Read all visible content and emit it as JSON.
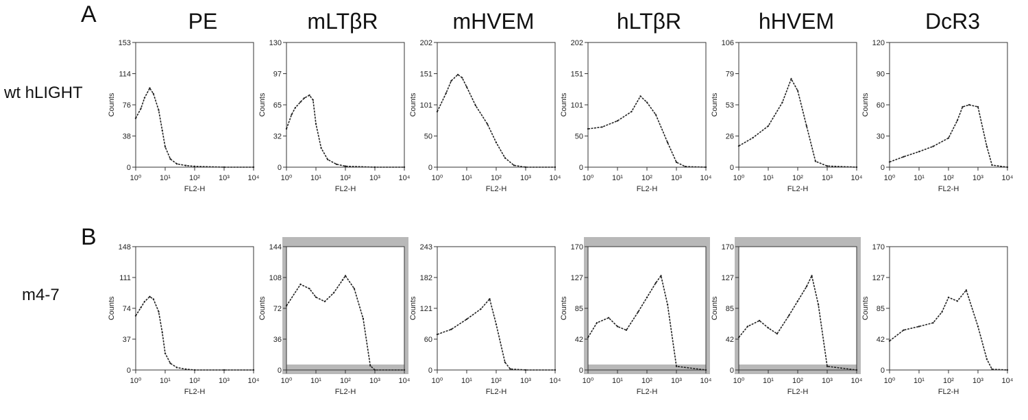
{
  "panel_labels": [
    "A",
    "B"
  ],
  "columns": [
    "PE",
    "mLTβR",
    "mHVEM",
    "hLTβR",
    "hHVEM",
    "DcR3"
  ],
  "rows": [
    "wt hLIGHT",
    "m4-7"
  ],
  "style": {
    "trace_color": "#222222",
    "highlight_fill": "#b8b8b8"
  },
  "chart_data": [
    {
      "type": "area",
      "row": "wt hLIGHT",
      "column": "PE",
      "xlabel": "FL2-H",
      "ylabel": "Counts",
      "xscale": "log",
      "xlim": [
        1,
        10000
      ],
      "ylim": [
        0,
        153
      ],
      "x_ticks": [
        "10⁰",
        "10¹",
        "10²",
        "10³",
        "10⁴"
      ],
      "y_ticks": [
        "0",
        "38",
        "76",
        "114",
        "153"
      ],
      "x": [
        1,
        1.5,
        2,
        3,
        4,
        6,
        8,
        10,
        15,
        25,
        50,
        100,
        1000,
        10000
      ],
      "y": [
        60,
        72,
        85,
        97,
        90,
        70,
        45,
        25,
        10,
        4,
        2,
        1,
        0,
        0
      ],
      "highlight": false
    },
    {
      "type": "area",
      "row": "wt hLIGHT",
      "column": "mLTβR",
      "xlabel": "FL2-H",
      "ylabel": "Counts",
      "xscale": "log",
      "xlim": [
        1,
        10000
      ],
      "ylim": [
        0,
        130
      ],
      "x_ticks": [
        "10⁰",
        "10¹",
        "10²",
        "10³",
        "10⁴"
      ],
      "y_ticks": [
        "0",
        "32",
        "65",
        "97",
        "130"
      ],
      "x": [
        1,
        1.5,
        2,
        3,
        4,
        6,
        8,
        10,
        15,
        25,
        50,
        100,
        1000,
        10000
      ],
      "y": [
        40,
        55,
        62,
        68,
        72,
        75,
        70,
        45,
        20,
        8,
        3,
        1,
        0,
        0
      ],
      "highlight": false
    },
    {
      "type": "area",
      "row": "wt hLIGHT",
      "column": "mHVEM",
      "xlabel": "FL2-H",
      "ylabel": "Counts",
      "xscale": "log",
      "xlim": [
        1,
        10000
      ],
      "ylim": [
        0,
        202
      ],
      "x_ticks": [
        "10⁰",
        "10¹",
        "10²",
        "10³",
        "10⁴"
      ],
      "y_ticks": [
        "0",
        "50",
        "101",
        "151",
        "202"
      ],
      "x": [
        1,
        2,
        3,
        5,
        7,
        10,
        20,
        50,
        100,
        200,
        400,
        1000,
        10000
      ],
      "y": [
        90,
        120,
        140,
        150,
        145,
        130,
        100,
        70,
        40,
        15,
        3,
        0,
        0
      ],
      "highlight": false
    },
    {
      "type": "area",
      "row": "wt hLIGHT",
      "column": "hLTβR",
      "xlabel": "FL2-H",
      "ylabel": "Counts",
      "xscale": "log",
      "xlim": [
        1,
        10000
      ],
      "ylim": [
        0,
        202
      ],
      "x_ticks": [
        "10⁰",
        "10¹",
        "10²",
        "10³",
        "10⁴"
      ],
      "y_ticks": [
        "0",
        "50",
        "101",
        "151",
        "202"
      ],
      "x": [
        1,
        3,
        10,
        30,
        60,
        100,
        200,
        500,
        1000,
        2000,
        10000
      ],
      "y": [
        62,
        65,
        75,
        90,
        115,
        105,
        85,
        40,
        8,
        1,
        0
      ],
      "highlight": false
    },
    {
      "type": "area",
      "row": "wt hLIGHT",
      "column": "hHVEM",
      "xlabel": "FL2-H",
      "ylabel": "Counts",
      "xscale": "log",
      "xlim": [
        1,
        10000
      ],
      "ylim": [
        0,
        106
      ],
      "x_ticks": [
        "10⁰",
        "10¹",
        "10²",
        "10³",
        "10⁴"
      ],
      "y_ticks": [
        "0",
        "26",
        "53",
        "79",
        "106"
      ],
      "x": [
        1,
        3,
        10,
        30,
        60,
        100,
        200,
        400,
        1000,
        10000
      ],
      "y": [
        18,
        25,
        35,
        55,
        75,
        65,
        35,
        5,
        1,
        0
      ],
      "highlight": false
    },
    {
      "type": "area",
      "row": "wt hLIGHT",
      "column": "DcR3",
      "xlabel": "FL2-H",
      "ylabel": "Counts",
      "xscale": "log",
      "xlim": [
        1,
        10000
      ],
      "ylim": [
        0,
        120
      ],
      "x_ticks": [
        "10⁰",
        "10¹",
        "10²",
        "10³",
        "10⁴"
      ],
      "y_ticks": [
        "0",
        "30",
        "60",
        "90",
        "120"
      ],
      "x": [
        1,
        3,
        10,
        30,
        100,
        200,
        300,
        500,
        1000,
        2000,
        3000,
        10000
      ],
      "y": [
        5,
        10,
        15,
        20,
        28,
        45,
        58,
        60,
        58,
        20,
        2,
        0
      ],
      "highlight": false
    },
    {
      "type": "area",
      "row": "m4-7",
      "column": "PE",
      "xlabel": "FL2-H",
      "ylabel": "Counts",
      "xscale": "log",
      "xlim": [
        1,
        10000
      ],
      "ylim": [
        0,
        148
      ],
      "x_ticks": [
        "10⁰",
        "10¹",
        "10²",
        "10³",
        "10⁴"
      ],
      "y_ticks": [
        "0",
        "37",
        "74",
        "111",
        "148"
      ],
      "x": [
        1,
        1.5,
        2,
        3,
        4,
        6,
        8,
        10,
        15,
        25,
        50,
        100,
        1000,
        10000
      ],
      "y": [
        65,
        75,
        82,
        88,
        85,
        70,
        45,
        20,
        8,
        3,
        1,
        0,
        0,
        0
      ],
      "highlight": false
    },
    {
      "type": "area",
      "row": "m4-7",
      "column": "mLTβR",
      "xlabel": "FL2-H",
      "ylabel": "Counts",
      "xscale": "log",
      "xlim": [
        1,
        10000
      ],
      "ylim": [
        0,
        144
      ],
      "x_ticks": [
        "10⁰",
        "10¹",
        "10²",
        "10³",
        "10⁴"
      ],
      "y_ticks": [
        "0",
        "36",
        "72",
        "108",
        "144"
      ],
      "x": [
        1,
        3,
        6,
        10,
        20,
        40,
        80,
        100,
        200,
        400,
        700,
        1000,
        10000
      ],
      "y": [
        75,
        100,
        95,
        85,
        80,
        90,
        105,
        110,
        95,
        60,
        5,
        0,
        0
      ],
      "highlight": true
    },
    {
      "type": "area",
      "row": "m4-7",
      "column": "mHVEM",
      "xlabel": "FL2-H",
      "ylabel": "Counts",
      "xscale": "log",
      "xlim": [
        1,
        10000
      ],
      "ylim": [
        0,
        243
      ],
      "x_ticks": [
        "10⁰",
        "10¹",
        "10²",
        "10³",
        "10⁴"
      ],
      "y_ticks": [
        "0",
        "60",
        "121",
        "182",
        "243"
      ],
      "x": [
        1,
        3,
        10,
        30,
        60,
        100,
        200,
        300,
        1000,
        10000
      ],
      "y": [
        70,
        80,
        100,
        120,
        140,
        90,
        15,
        2,
        0,
        0
      ],
      "highlight": false
    },
    {
      "type": "area",
      "row": "m4-7",
      "column": "hLTβR",
      "xlabel": "FL2-H",
      "ylabel": "Counts",
      "xscale": "log",
      "xlim": [
        1,
        10000
      ],
      "ylim": [
        0,
        170
      ],
      "x_ticks": [
        "10⁰",
        "10¹",
        "10²",
        "10³",
        "10⁴"
      ],
      "y_ticks": [
        "0",
        "42",
        "85",
        "127",
        "170"
      ],
      "x": [
        1,
        2,
        5,
        10,
        20,
        50,
        100,
        200,
        300,
        500,
        1000,
        10000
      ],
      "y": [
        45,
        65,
        72,
        60,
        55,
        80,
        100,
        120,
        130,
        90,
        5,
        0
      ],
      "highlight": true
    },
    {
      "type": "area",
      "row": "m4-7",
      "column": "hHVEM",
      "xlabel": "FL2-H",
      "ylabel": "Counts",
      "xscale": "log",
      "xlim": [
        1,
        10000
      ],
      "ylim": [
        0,
        170
      ],
      "x_ticks": [
        "10⁰",
        "10¹",
        "10²",
        "10³",
        "10⁴"
      ],
      "y_ticks": [
        "0",
        "42",
        "85",
        "127",
        "170"
      ],
      "x": [
        1,
        2,
        5,
        10,
        20,
        50,
        100,
        200,
        300,
        500,
        1000,
        10000
      ],
      "y": [
        45,
        60,
        68,
        58,
        50,
        75,
        95,
        115,
        130,
        90,
        5,
        0
      ],
      "highlight": true
    },
    {
      "type": "area",
      "row": "m4-7",
      "column": "DcR3",
      "xlabel": "FL2-H",
      "ylabel": "Counts",
      "xscale": "log",
      "xlim": [
        1,
        10000
      ],
      "ylim": [
        0,
        170
      ],
      "x_ticks": [
        "10⁰",
        "10¹",
        "10²",
        "10³",
        "10⁴"
      ],
      "y_ticks": [
        "0",
        "42",
        "85",
        "127",
        "170"
      ],
      "x": [
        1,
        3,
        10,
        30,
        60,
        100,
        200,
        400,
        1000,
        2000,
        3000,
        10000
      ],
      "y": [
        40,
        55,
        60,
        65,
        80,
        100,
        95,
        110,
        60,
        15,
        1,
        0
      ],
      "highlight": false
    }
  ]
}
